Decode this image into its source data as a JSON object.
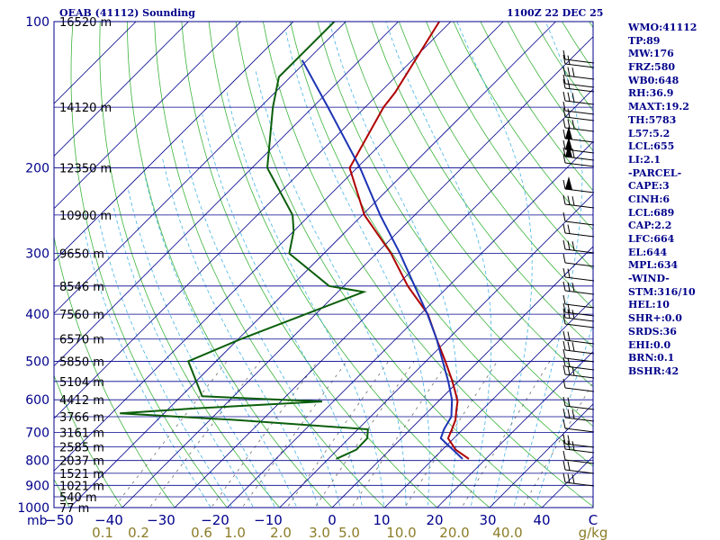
{
  "header": {
    "station": "OEAB (41112) Sounding",
    "time": "1100Z 22 DEC 25"
  },
  "indices": [
    "WMO:41112",
    "TP:89",
    "MW:176",
    "FRZ:580",
    "WB0:648",
    "RH:36.9",
    "MAXT:19.2",
    "TH:5783",
    "L57:5.2",
    "LCL:655",
    "LI:2.1",
    "-PARCEL-",
    "CAPE:3",
    "CINH:6",
    "LCL:689",
    "CAP:2.2",
    "LFC:664",
    "EL:644",
    "MPL:634",
    "-WIND-",
    "STM:316/10",
    "HEL:10",
    "SHR+:0.0",
    "SRDS:36",
    "EHI:0.0",
    "BRN:0.1",
    "BSHR:42"
  ],
  "chart_data": {
    "type": "line",
    "title": "OEAB (41112) Sounding",
    "xlabel": "°C",
    "ylabel": "mb",
    "y_scale": "log",
    "skew_t": true,
    "ylim": [
      1000,
      100
    ],
    "xlim": [
      -50,
      50
    ],
    "pressure_ticks": [
      100,
      200,
      300,
      400,
      500,
      600,
      700,
      800,
      900,
      1000
    ],
    "temperature_ticks": [
      "-50",
      "-40",
      "-30",
      "-20",
      "-10",
      "0",
      "10",
      "20",
      "30",
      "40",
      "C"
    ],
    "unit_label": "mb",
    "mixing_ratio_ticks": [
      "0.1",
      "0.2",
      "0.6",
      "1.0",
      "2.0",
      "3.0",
      "5.0",
      "10.0",
      "20.0",
      "40.0",
      "g/kg"
    ],
    "height_labels": [
      {
        "p": 100,
        "label": "16520 m"
      },
      {
        "p": 150,
        "label": "14120 m"
      },
      {
        "p": 200,
        "label": "12350 m"
      },
      {
        "p": 250,
        "label": "10900 m"
      },
      {
        "p": 300,
        "label": "9650 m"
      },
      {
        "p": 350,
        "label": "8546 m"
      },
      {
        "p": 400,
        "label": "7560 m"
      },
      {
        "p": 450,
        "label": "6570 m"
      },
      {
        "p": 500,
        "label": "5850 m"
      },
      {
        "p": 550,
        "label": "5104 m"
      },
      {
        "p": 600,
        "label": "4412 m"
      },
      {
        "p": 650,
        "label": "3766 m"
      },
      {
        "p": 700,
        "label": "3161 m"
      },
      {
        "p": 750,
        "label": "2585 m"
      },
      {
        "p": 800,
        "label": "2037 m"
      },
      {
        "p": 850,
        "label": "1521 m"
      },
      {
        "p": 900,
        "label": "1021 m"
      },
      {
        "p": 950,
        "label": "540 m"
      },
      {
        "p": 1000,
        "label": "77 m"
      }
    ],
    "series": [
      {
        "name": "Temperature",
        "color": "#b00000",
        "points": [
          {
            "p": 794,
            "t": 16.8
          },
          {
            "p": 760,
            "t": 12.5
          },
          {
            "p": 720,
            "t": 8.9
          },
          {
            "p": 690,
            "t": 7.9
          },
          {
            "p": 660,
            "t": 6.8
          },
          {
            "p": 630,
            "t": 5.1
          },
          {
            "p": 605,
            "t": 3.7
          },
          {
            "p": 580,
            "t": 1.6
          },
          {
            "p": 545,
            "t": -1.6
          },
          {
            "p": 500,
            "t": -6.3
          },
          {
            "p": 450,
            "t": -12.2
          },
          {
            "p": 400,
            "t": -18.6
          },
          {
            "p": 350,
            "t": -27.8
          },
          {
            "p": 300,
            "t": -37.2
          },
          {
            "p": 250,
            "t": -49.6
          },
          {
            "p": 200,
            "t": -61.4
          },
          {
            "p": 150,
            "t": -66.5
          },
          {
            "p": 140,
            "t": -67.1
          },
          {
            "p": 100,
            "t": -72.2
          }
        ]
      },
      {
        "name": "Dewpoint",
        "color": "#0b5e0b",
        "points": [
          {
            "p": 794,
            "t": -8.5
          },
          {
            "p": 760,
            "t": -6.4
          },
          {
            "p": 720,
            "t": -6.5
          },
          {
            "p": 690,
            "t": -8.1
          },
          {
            "p": 660,
            "t": -35.1
          },
          {
            "p": 640,
            "t": -58.4
          },
          {
            "p": 625,
            "t": -45
          },
          {
            "p": 605,
            "t": -22.1
          },
          {
            "p": 590,
            "t": -46
          },
          {
            "p": 500,
            "t": -55.3
          },
          {
            "p": 450,
            "t": -49.5
          },
          {
            "p": 360,
            "t": -35.1
          },
          {
            "p": 350,
            "t": -42.8
          },
          {
            "p": 300,
            "t": -56.6
          },
          {
            "p": 270,
            "t": -60
          },
          {
            "p": 250,
            "t": -63.3
          },
          {
            "p": 200,
            "t": -77.1
          },
          {
            "p": 150,
            "t": -87.6
          },
          {
            "p": 130,
            "t": -92.2
          },
          {
            "p": 100,
            "t": -92.2
          }
        ]
      },
      {
        "name": "Parcel",
        "color": "#1d34b4",
        "points": [
          {
            "p": 794,
            "t": 15.6
          },
          {
            "p": 720,
            "t": 7.5
          },
          {
            "p": 690,
            "t": 6.4
          },
          {
            "p": 650,
            "t": 5.4
          },
          {
            "p": 600,
            "t": 2.3
          },
          {
            "p": 550,
            "t": -1.9
          },
          {
            "p": 500,
            "t": -6.8
          },
          {
            "p": 450,
            "t": -12.2
          },
          {
            "p": 400,
            "t": -18.7
          },
          {
            "p": 350,
            "t": -26.5
          },
          {
            "p": 300,
            "t": -35.5
          },
          {
            "p": 250,
            "t": -46.6
          },
          {
            "p": 200,
            "t": -59.4
          },
          {
            "p": 150,
            "t": -77.1
          },
          {
            "p": 120,
            "t": -91
          }
        ]
      }
    ]
  },
  "colors": {
    "frame": "#00008b",
    "isobar": "#00008b",
    "isotherm": "#00008b",
    "dry_adiabat": "#3cb43c",
    "moist_adiabat": "#46b4e6",
    "mixing_ratio": "#6e6e6e",
    "labels": "#00008b",
    "mixing_labels": "#8b7d28",
    "barbs": "#000000"
  }
}
